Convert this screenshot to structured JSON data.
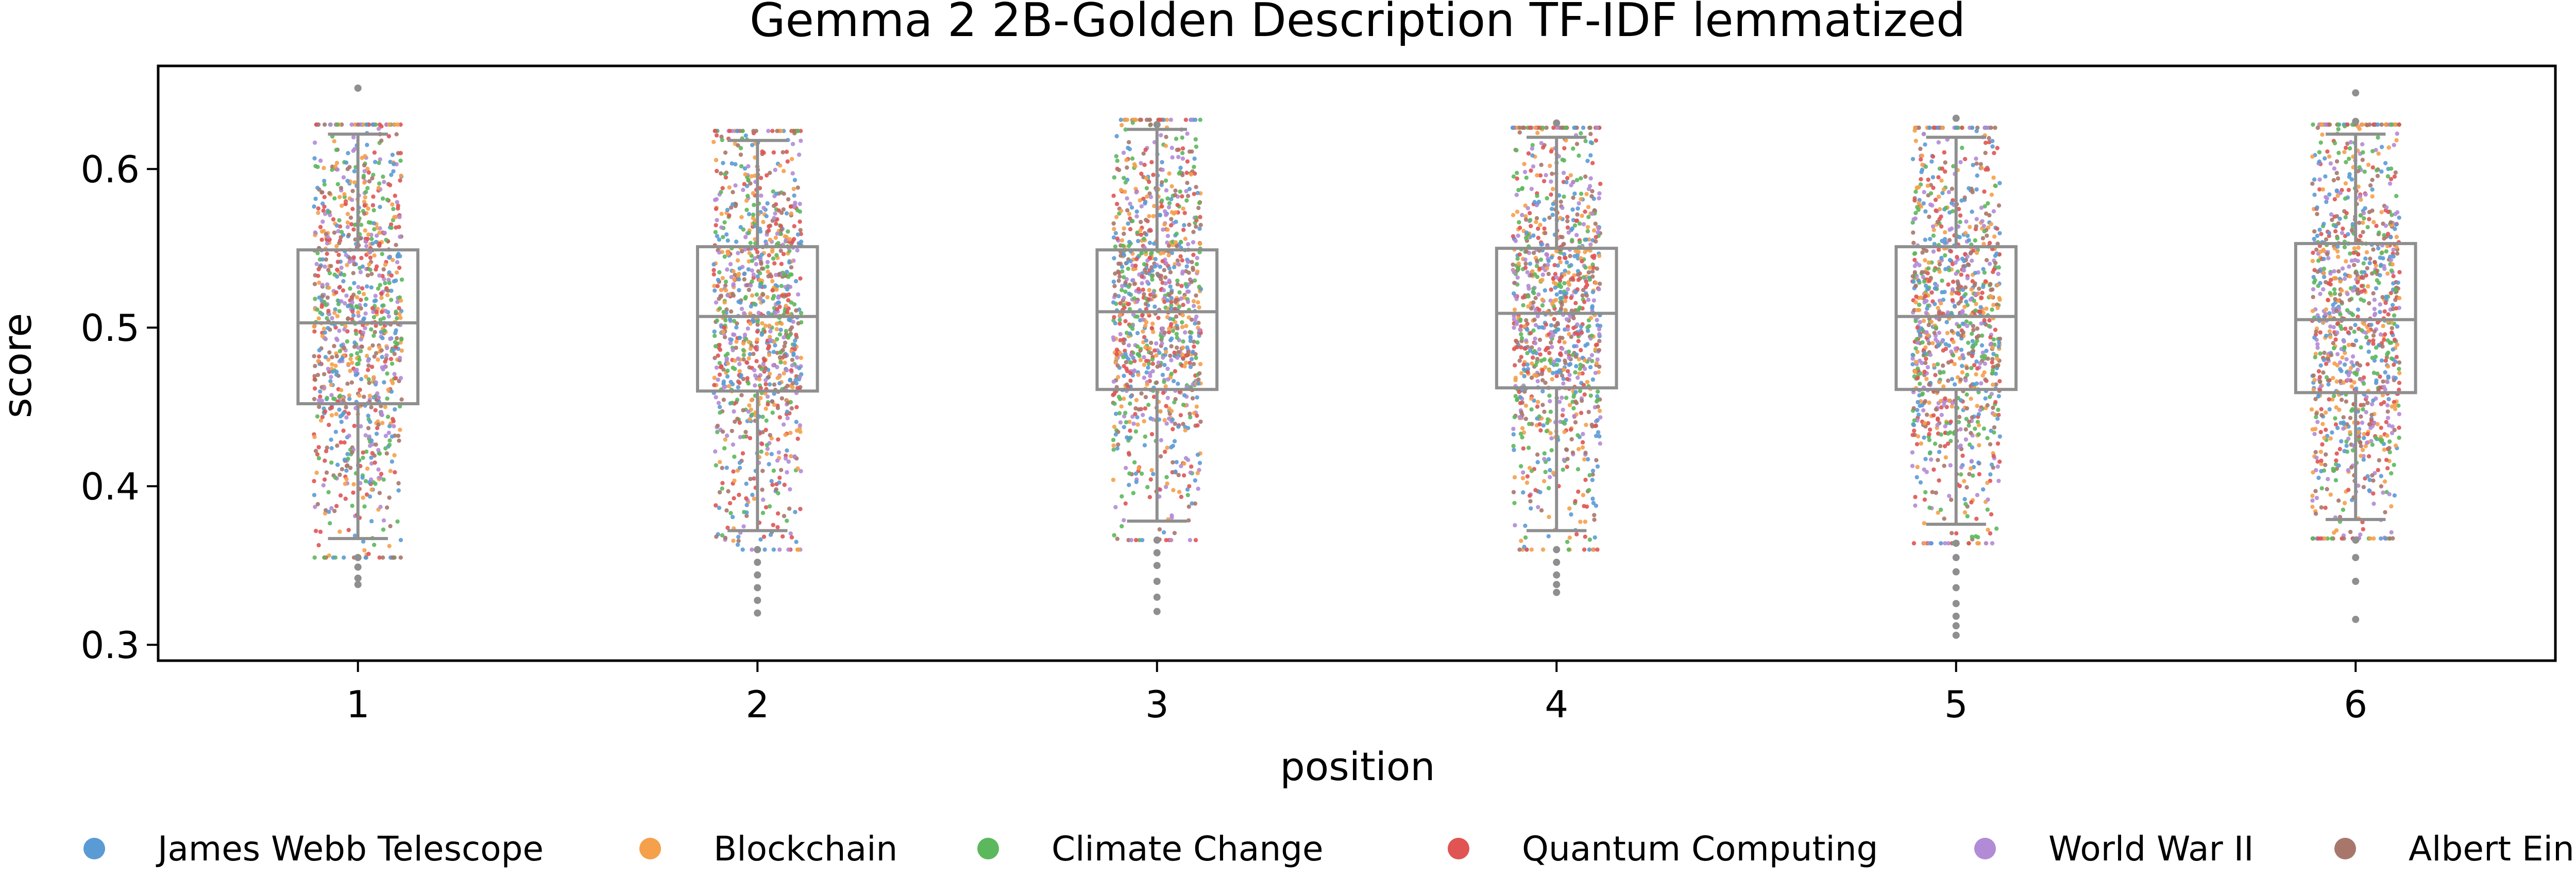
{
  "chart_data": {
    "type": "scatter",
    "title": "Gemma 2 2B-Golden Description TF-IDF lemmatized",
    "xlabel": "position",
    "ylabel": "score",
    "categories": [
      "1",
      "2",
      "3",
      "4",
      "5",
      "6"
    ],
    "y_ticks": [
      "0.3",
      "0.4",
      "0.5",
      "0.6"
    ],
    "ylim": [
      0.29,
      0.665
    ],
    "grid": false,
    "legend_position": "bottom",
    "series": [
      {
        "name": "James Webb Telescope",
        "color": "#5b9bd5"
      },
      {
        "name": "Blockchain",
        "color": "#f5a04a"
      },
      {
        "name": "Climate Change",
        "color": "#5cb85c"
      },
      {
        "name": "Quantum Computing",
        "color": "#e05454"
      },
      {
        "name": "World War II",
        "color": "#b28bd6"
      },
      {
        "name": "Albert Einstein",
        "color": "#a8776c"
      }
    ],
    "boxplots": [
      {
        "position": "1",
        "whisker_low": 0.367,
        "q1": 0.452,
        "median": 0.503,
        "q3": 0.549,
        "whisker_high": 0.622,
        "outliers": [
          0.651,
          0.355,
          0.349,
          0.342,
          0.338
        ]
      },
      {
        "position": "2",
        "whisker_low": 0.372,
        "q1": 0.46,
        "median": 0.507,
        "q3": 0.551,
        "whisker_high": 0.618,
        "outliers": [
          0.36,
          0.352,
          0.344,
          0.336,
          0.328,
          0.32
        ]
      },
      {
        "position": "3",
        "whisker_low": 0.378,
        "q1": 0.461,
        "median": 0.51,
        "q3": 0.549,
        "whisker_high": 0.625,
        "outliers": [
          0.366,
          0.358,
          0.35,
          0.34,
          0.33,
          0.321,
          0.628
        ]
      },
      {
        "position": "4",
        "whisker_low": 0.372,
        "q1": 0.462,
        "median": 0.509,
        "q3": 0.55,
        "whisker_high": 0.62,
        "outliers": [
          0.36,
          0.352,
          0.344,
          0.338,
          0.333,
          0.629
        ]
      },
      {
        "position": "5",
        "whisker_low": 0.376,
        "q1": 0.461,
        "median": 0.507,
        "q3": 0.551,
        "whisker_high": 0.62,
        "outliers": [
          0.364,
          0.355,
          0.346,
          0.336,
          0.326,
          0.318,
          0.312,
          0.306,
          0.632
        ]
      },
      {
        "position": "6",
        "whisker_low": 0.379,
        "q1": 0.459,
        "median": 0.505,
        "q3": 0.553,
        "whisker_high": 0.622,
        "outliers": [
          0.366,
          0.355,
          0.34,
          0.316,
          0.648,
          0.63
        ]
      }
    ],
    "points_per_position": 1000,
    "jitter_width": 0.22
  }
}
